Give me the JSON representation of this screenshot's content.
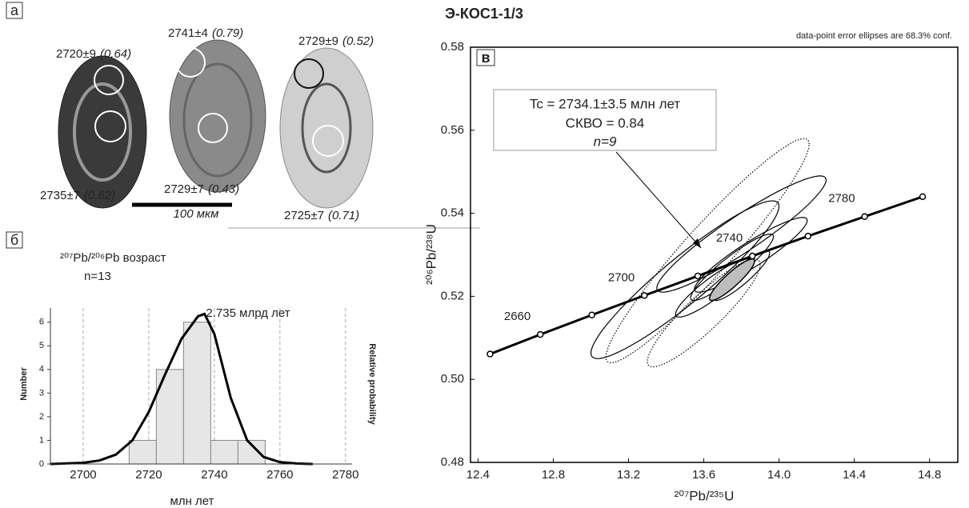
{
  "title": "Э-КОС1-1/3",
  "panel_a": {
    "label": "а",
    "scale_bar": "100 мкм",
    "spots": [
      {
        "age": "2720±9",
        "ratio": "(0.64)"
      },
      {
        "age": "2735±7",
        "ratio": "(0.62)"
      },
      {
        "age": "2741±4",
        "ratio": "(0.79)"
      },
      {
        "age": "2729±7",
        "ratio": "(0.43)"
      },
      {
        "age": "2729±9",
        "ratio": "(0.52)"
      },
      {
        "age": "2725±7",
        "ratio": "(0.71)"
      }
    ]
  },
  "chart_data": [
    {
      "type": "histogram",
      "panel_label": "б",
      "xlabel": "млн лет",
      "ylabel": "Number",
      "y2label": "Relative probability",
      "annotations": [
        "²⁰⁷Pb/²⁰⁶Pb возраст",
        "n=13",
        "2.735 млрд лет"
      ],
      "bins": [
        2714,
        2722.3,
        2730.6,
        2738.9,
        2747.2,
        2755.5
      ],
      "counts": [
        1,
        4,
        6,
        1,
        1
      ],
      "color": "#e6e6e6",
      "curve": {
        "x": [
          2690,
          2700,
          2705,
          2710,
          2715,
          2720,
          2725,
          2730,
          2735,
          2737,
          2740,
          2745,
          2750,
          2755,
          2760,
          2765,
          2770
        ],
        "values": [
          0,
          0.05,
          0.15,
          0.4,
          1.0,
          2.2,
          3.8,
          5.3,
          6.25,
          6.35,
          5.5,
          2.8,
          1.0,
          0.3,
          0.08,
          0.02,
          0
        ]
      },
      "xlim": [
        2690,
        2782
      ],
      "ylim": [
        0,
        6.6
      ],
      "xticks": [
        2700,
        2720,
        2740,
        2760,
        2780
      ],
      "yticks": [
        0,
        1,
        2,
        3,
        4,
        5,
        6
      ],
      "grid": true
    },
    {
      "type": "concordia",
      "panel_label": "в",
      "note": "data-point error ellipses are 68.3% conf.",
      "xlabel": "²⁰⁷Pb/²³⁵U",
      "ylabel": "²⁰⁶Pb/²³⁸U",
      "result": [
        "Tc = 2734.1±3.5 млн лет",
        "СКВО = 0.84",
        "n=9"
      ],
      "xlim": [
        12.36,
        14.95
      ],
      "ylim": [
        0.48,
        0.58
      ],
      "xticks": [
        12.4,
        12.8,
        13.2,
        13.6,
        {
          "value": 14,
          "label": "14.0"
        },
        14.4,
        14.8
      ],
      "yticks": [
        0.48,
        {
          "value": 0.5,
          "label": "0.50"
        },
        0.52,
        0.54,
        0.56,
        0.58
      ],
      "concordia": {
        "ages": [
          2640,
          2660,
          2680,
          2700,
          2720,
          2740,
          2760,
          2780,
          2800
        ],
        "x": [
          12.464,
          12.731,
          13.005,
          13.284,
          13.568,
          13.858,
          14.154,
          14.455,
          14.763
        ],
        "y": [
          0.5061,
          0.5108,
          0.5155,
          0.5202,
          0.5249,
          0.5297,
          0.5345,
          0.5392,
          0.544
        ],
        "labels": [
          2660,
          2700,
          2740,
          2780
        ]
      },
      "ellipses": [
        {
          "x": 13.62,
          "y": 0.531,
          "x_err": 0.54,
          "y_err": 0.027,
          "rho": 0.95,
          "style": "dotted"
        },
        {
          "x": 13.5,
          "y": 0.524,
          "x_err": 0.5,
          "y_err": 0.019,
          "rho": 0.93,
          "style": "solid"
        },
        {
          "x": 13.6,
          "y": 0.516,
          "x_err": 0.3,
          "y_err": 0.013,
          "rho": 0.9,
          "style": "dotted"
        },
        {
          "x": 13.8,
          "y": 0.535,
          "x_err": 0.45,
          "y_err": 0.014,
          "rho": 0.93,
          "style": "solid"
        },
        {
          "x": 13.75,
          "y": 0.527,
          "x_err": 0.22,
          "y_err": 0.008,
          "rho": 0.92,
          "style": "solid"
        },
        {
          "x": 13.85,
          "y": 0.53,
          "x_err": 0.3,
          "y_err": 0.009,
          "rho": 0.92,
          "style": "solid"
        },
        {
          "x": 13.65,
          "y": 0.522,
          "x_err": 0.2,
          "y_err": 0.007,
          "rho": 0.9,
          "style": "solid"
        },
        {
          "x": 13.8,
          "y": 0.525,
          "x_err": 0.15,
          "y_err": 0.006,
          "rho": 0.9,
          "style": "solid"
        },
        {
          "x": 13.75,
          "y": 0.524,
          "x_err": 0.12,
          "y_err": 0.005,
          "rho": 0.9,
          "style": "mean"
        }
      ]
    }
  ]
}
